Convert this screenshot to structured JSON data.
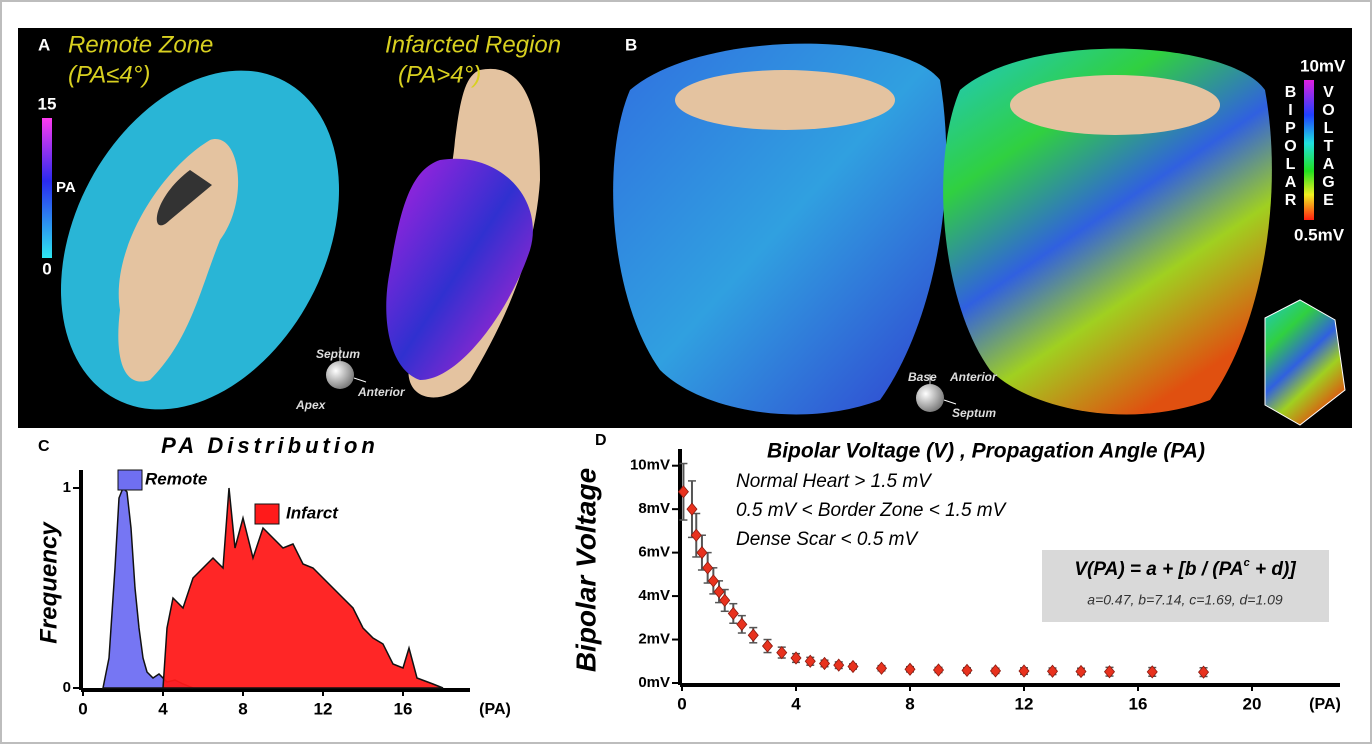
{
  "panels": {
    "a": {
      "label": "A",
      "remote_title": "Remote Zone",
      "remote_sub": "(PA≤4°)",
      "infarct_title": "Infarcted Region",
      "infarct_sub": "(PA>4°)",
      "colorbar": {
        "label": "PA",
        "max": 15,
        "min": 0
      },
      "orientation": {
        "up": "Septum",
        "right": "Anterior",
        "down": "Apex"
      }
    },
    "b": {
      "label": "B",
      "colorbar": {
        "max_label": "10mV",
        "min_label": "0.5mV",
        "left_title": "BIPOLAR",
        "right_title": "VOLTAGE"
      },
      "orientation": {
        "up": "Base",
        "right": "Anterior",
        "down": "Septum"
      }
    },
    "c": {
      "label": "C"
    },
    "d": {
      "label": "D"
    }
  },
  "chart_data": [
    {
      "type": "area",
      "title": "PA Distribution",
      "y_label": "Frequency",
      "x_label": "(PA)",
      "xlim": [
        0,
        19
      ],
      "xticks": [
        0,
        4,
        8,
        12,
        16
      ],
      "ylim": [
        0,
        1.05
      ],
      "yticks": [
        0,
        1
      ],
      "series": [
        {
          "name": "Remote",
          "color": "#6f6ff2",
          "x": [
            1.0,
            1.3,
            1.6,
            1.8,
            2.0,
            2.2,
            2.4,
            2.6,
            2.8,
            3.0,
            3.2,
            3.5,
            3.8,
            4.2,
            4.6,
            5.0,
            5.5
          ],
          "values": [
            0,
            0.15,
            0.6,
            0.95,
            1.0,
            0.98,
            0.8,
            0.5,
            0.3,
            0.15,
            0.08,
            0.05,
            0.07,
            0.03,
            0.04,
            0.02,
            0
          ]
        },
        {
          "name": "Infarct",
          "color": "#ff1a1a",
          "x": [
            4.0,
            4.2,
            4.5,
            5.0,
            5.5,
            6.0,
            6.5,
            7.0,
            7.3,
            7.6,
            8.0,
            8.5,
            9.0,
            9.5,
            10.0,
            10.5,
            11.0,
            11.5,
            12.0,
            12.5,
            13.0,
            13.5,
            14.0,
            14.5,
            15.0,
            15.5,
            16.0,
            16.3,
            16.7,
            17.5,
            18.0
          ],
          "values": [
            0,
            0.3,
            0.45,
            0.4,
            0.55,
            0.6,
            0.65,
            0.6,
            1.0,
            0.7,
            0.85,
            0.65,
            0.8,
            0.75,
            0.7,
            0.72,
            0.62,
            0.6,
            0.55,
            0.5,
            0.45,
            0.4,
            0.3,
            0.25,
            0.22,
            0.12,
            0.1,
            0.2,
            0.05,
            0.02,
            0
          ]
        }
      ]
    },
    {
      "type": "scatter",
      "title": "Bipolar Voltage (V) , Propagation Angle (PA)",
      "y_label": "Bipolar Voltage",
      "x_label": "(PA)",
      "annotations": [
        "Normal Heart > 1.5 mV",
        "0.5 mV < Border Zone < 1.5 mV",
        "Dense Scar < 0.5 mV"
      ],
      "formula": [
        "V(PA) = a + [b / (PA",
        "c",
        " + d)]"
      ],
      "coefficients": "a=0.47, b=7.14, c=1.69, d=1.09",
      "xlim": [
        0,
        23
      ],
      "xticks": [
        0,
        4,
        8,
        12,
        16,
        20
      ],
      "ylim": [
        0,
        10.4
      ],
      "yticks": [
        {
          "value": 0,
          "label": "0mV"
        },
        {
          "value": 2,
          "label": "2mV"
        },
        {
          "value": 4,
          "label": "4mV"
        },
        {
          "value": 6,
          "label": "6mV"
        },
        {
          "value": 8,
          "label": "8mV"
        },
        {
          "value": 10,
          "label": "10mV"
        }
      ],
      "series": [
        {
          "color": "#e8321e",
          "error_color": "#555555",
          "x": [
            0.05,
            0.35,
            0.5,
            0.7,
            0.9,
            1.1,
            1.3,
            1.5,
            1.8,
            2.1,
            2.5,
            3.0,
            3.5,
            4.0,
            4.5,
            5.0,
            5.5,
            6.0,
            7.0,
            8.0,
            9.0,
            10.0,
            11.0,
            12.0,
            13.0,
            14.0,
            15.0,
            16.5,
            18.3
          ],
          "values": [
            8.8,
            8.0,
            6.8,
            6.0,
            5.3,
            4.7,
            4.2,
            3.8,
            3.2,
            2.7,
            2.2,
            1.7,
            1.4,
            1.15,
            1.0,
            0.9,
            0.82,
            0.76,
            0.68,
            0.63,
            0.6,
            0.58,
            0.56,
            0.55,
            0.54,
            0.53,
            0.52,
            0.51,
            0.5
          ],
          "errors": [
            1.3,
            1.3,
            1.0,
            0.8,
            0.7,
            0.6,
            0.5,
            0.5,
            0.45,
            0.4,
            0.35,
            0.3,
            0.25,
            0.2,
            0.18,
            0.15,
            0.15,
            0.12,
            0.12,
            0.12,
            0.12,
            0.12,
            0.12,
            0.15,
            0.15,
            0.15,
            0.2,
            0.2,
            0.2
          ]
        }
      ]
    }
  ]
}
